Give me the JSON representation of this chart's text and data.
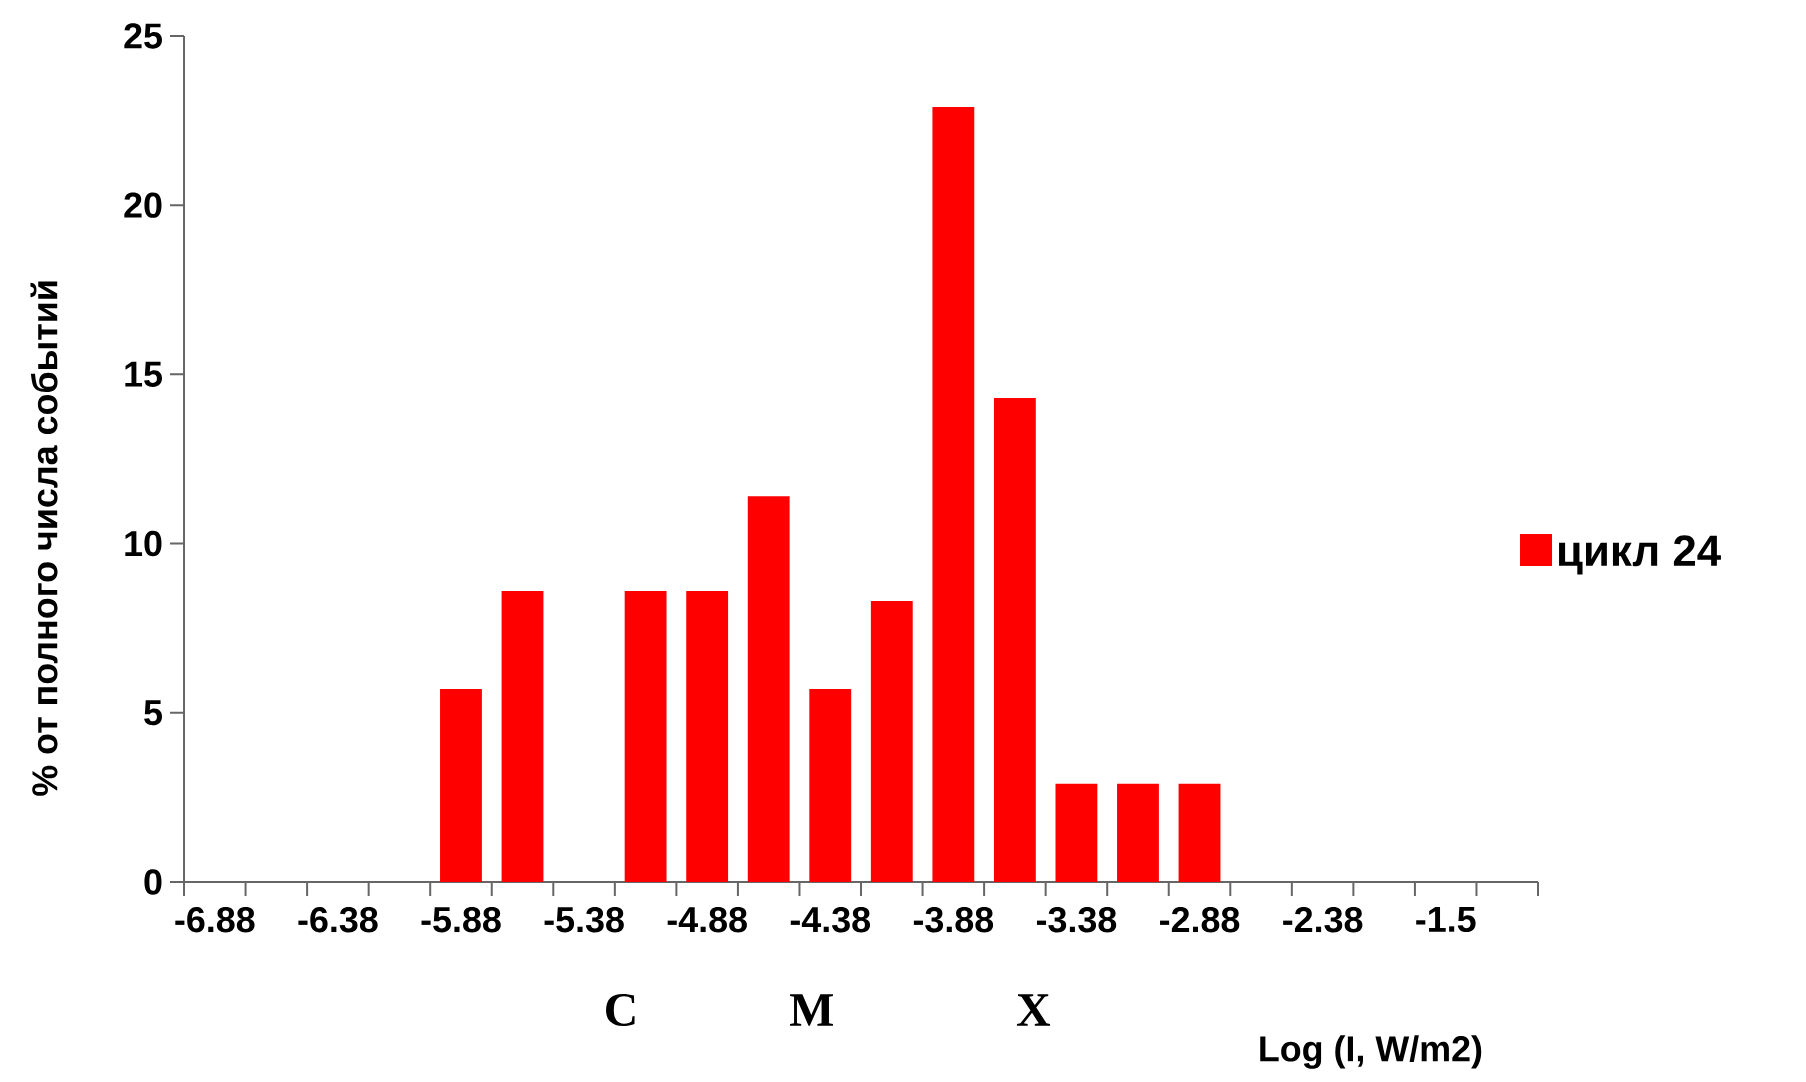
{
  "chart_data": {
    "type": "bar",
    "xlabel": "Log (I, W/m2)",
    "ylabel": "% от полного числа событий",
    "categories": [
      "-6.88",
      null,
      "-6.38",
      null,
      "-5.88",
      null,
      "-5.38",
      null,
      "-4.88",
      null,
      "-4.38",
      null,
      "-3.88",
      null,
      "-3.38",
      null,
      "-2.88",
      null,
      "-2.38",
      null,
      "-1.5",
      null
    ],
    "series": [
      {
        "name": "цикл 24",
        "color": "#ff0000",
        "values": [
          0,
          0,
          0,
          0,
          5.7,
          8.6,
          0,
          8.6,
          8.6,
          11.4,
          5.7,
          8.3,
          22.9,
          14.3,
          2.9,
          2.9,
          2.9,
          0,
          0,
          0,
          0,
          0
        ]
      }
    ],
    "ylim": [
      0,
      25
    ],
    "yticks": [
      0,
      5,
      10,
      15,
      20,
      25
    ],
    "legend": "right",
    "grid": false,
    "annotations": [
      "C",
      "M",
      "X"
    ]
  }
}
